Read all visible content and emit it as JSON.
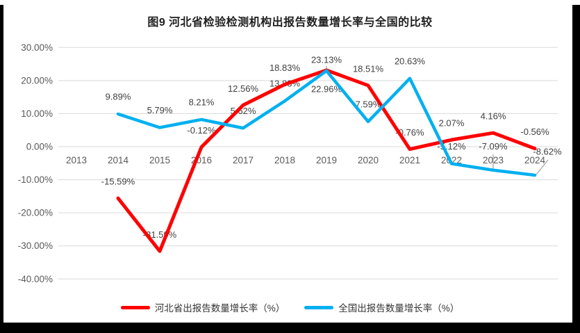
{
  "colors": {
    "hebei": "#ff0000",
    "national": "#00b0f0",
    "gridline": "#d9d9d9",
    "axis_text": "#595959",
    "label_text": "#404040",
    "leader_line": "#a6a6a6",
    "frame": "#000000",
    "title_text": "#1f1f1f"
  },
  "chart_data": {
    "type": "line",
    "title": "图9 河北省检验检测机构出报告数量增长率与全国的比较",
    "categories": [
      "2013",
      "2014",
      "2015",
      "2016",
      "2017",
      "2018",
      "2019",
      "2020",
      "2021",
      "2022",
      "2023",
      "2024"
    ],
    "series": [
      {
        "name": "河北省出报告数量增长率（%）",
        "color_key": "hebei",
        "values": [
          null,
          -15.59,
          -31.59,
          -0.12,
          12.56,
          18.83,
          23.13,
          18.51,
          -0.76,
          2.07,
          4.16,
          -0.56
        ]
      },
      {
        "name": "全国出报告数量增长率（%）",
        "color_key": "national",
        "values": [
          null,
          9.89,
          5.79,
          8.21,
          5.62,
          13.83,
          22.96,
          7.59,
          20.63,
          -5.12,
          -7.09,
          -8.62
        ]
      }
    ],
    "ylim": [
      -40,
      30
    ],
    "ytick_step": 10,
    "yticks": [
      30,
      20,
      10,
      0,
      -10,
      -20,
      -30,
      -40
    ],
    "ytick_labels": [
      "30.00%",
      "20.00%",
      "10.00%",
      "0.00%",
      "-10.00%",
      "-20.00%",
      "-30.00%",
      "-40.00%"
    ],
    "grid": true,
    "data_labels": true,
    "legend_position": "bottom"
  }
}
